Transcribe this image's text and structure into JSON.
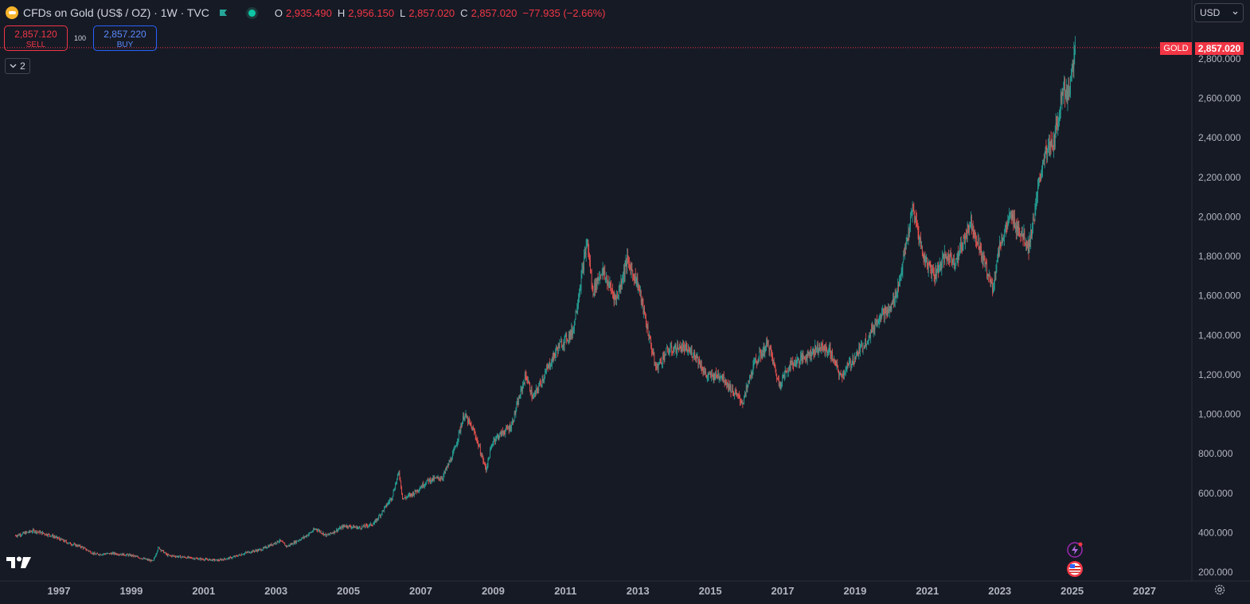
{
  "header": {
    "title": "CFDs on Gold (US$ / OZ) · 1W · TVC",
    "open_key": "O",
    "open": "2,935.490",
    "high_key": "H",
    "high": "2,956.150",
    "low_key": "L",
    "low": "2,857.020",
    "close_key": "C",
    "close": "2,857.020",
    "change": "−77.935 (−2.66%)"
  },
  "trade": {
    "sell_price": "2,857.120",
    "sell_label": "SELL",
    "spread": "100",
    "buy_price": "2,857.220",
    "buy_label": "BUY"
  },
  "indicators_count": "2",
  "currency": "USD",
  "price_scale_label": "2,857.020",
  "symbol_label": "GOLD",
  "colors": {
    "up": "#26a69a",
    "down": "#ef5350",
    "background": "#161a25",
    "accent": "#f23645"
  },
  "icons": [
    "gold-symbol-icon",
    "flag-icon",
    "status-dot-icon",
    "chevron-down-icon",
    "tradingview-logo-icon",
    "flash-icon",
    "us-flag-icon",
    "gear-icon"
  ],
  "chart_data": {
    "type": "candlestick",
    "interval": "1W",
    "title": "",
    "xlabel": "",
    "ylabel": "",
    "ylim": [
      175,
      2950
    ],
    "x_ticks": [
      "1997",
      "1999",
      "2001",
      "2003",
      "2005",
      "2007",
      "2009",
      "2011",
      "2013",
      "2015",
      "2017",
      "2019",
      "2021",
      "2023",
      "2025",
      "2027"
    ],
    "y_ticks": [
      "200.000",
      "400.000",
      "600.000",
      "800.000",
      "1,000.000",
      "1,200.000",
      "1,400.000",
      "1,600.000",
      "1,800.000",
      "2,000.000",
      "2,200.000",
      "2,400.000",
      "2,600.000",
      "2,800.000"
    ],
    "last_price": 2857.02,
    "grid": false,
    "series_close": [
      {
        "year": 1995.8,
        "close": 385
      },
      {
        "year": 1996.1,
        "close": 400
      },
      {
        "year": 1996.3,
        "close": 410
      },
      {
        "year": 1996.8,
        "close": 385
      },
      {
        "year": 1997.3,
        "close": 345
      },
      {
        "year": 1997.6,
        "close": 330
      },
      {
        "year": 1998.0,
        "close": 290
      },
      {
        "year": 1998.5,
        "close": 295
      },
      {
        "year": 1999.0,
        "close": 285
      },
      {
        "year": 1999.6,
        "close": 255
      },
      {
        "year": 1999.75,
        "close": 325
      },
      {
        "year": 2000.0,
        "close": 285
      },
      {
        "year": 2000.5,
        "close": 275
      },
      {
        "year": 2001.0,
        "close": 265
      },
      {
        "year": 2001.4,
        "close": 260
      },
      {
        "year": 2001.8,
        "close": 275
      },
      {
        "year": 2002.2,
        "close": 300
      },
      {
        "year": 2002.6,
        "close": 315
      },
      {
        "year": 2003.1,
        "close": 360
      },
      {
        "year": 2003.3,
        "close": 330
      },
      {
        "year": 2003.8,
        "close": 380
      },
      {
        "year": 2004.1,
        "close": 420
      },
      {
        "year": 2004.4,
        "close": 385
      },
      {
        "year": 2004.9,
        "close": 435
      },
      {
        "year": 2005.3,
        "close": 425
      },
      {
        "year": 2005.7,
        "close": 445
      },
      {
        "year": 2005.95,
        "close": 510
      },
      {
        "year": 2006.2,
        "close": 580
      },
      {
        "year": 2006.4,
        "close": 710
      },
      {
        "year": 2006.5,
        "close": 570
      },
      {
        "year": 2006.8,
        "close": 600
      },
      {
        "year": 2007.2,
        "close": 665
      },
      {
        "year": 2007.6,
        "close": 680
      },
      {
        "year": 2007.9,
        "close": 800
      },
      {
        "year": 2008.2,
        "close": 1000
      },
      {
        "year": 2008.5,
        "close": 900
      },
      {
        "year": 2008.8,
        "close": 720
      },
      {
        "year": 2009.0,
        "close": 870
      },
      {
        "year": 2009.5,
        "close": 940
      },
      {
        "year": 2009.9,
        "close": 1200
      },
      {
        "year": 2010.1,
        "close": 1080
      },
      {
        "year": 2010.5,
        "close": 1230
      },
      {
        "year": 2010.8,
        "close": 1340
      },
      {
        "year": 2011.2,
        "close": 1420
      },
      {
        "year": 2011.6,
        "close": 1880
      },
      {
        "year": 2011.75,
        "close": 1620
      },
      {
        "year": 2012.0,
        "close": 1730
      },
      {
        "year": 2012.4,
        "close": 1580
      },
      {
        "year": 2012.7,
        "close": 1780
      },
      {
        "year": 2013.0,
        "close": 1660
      },
      {
        "year": 2013.3,
        "close": 1400
      },
      {
        "year": 2013.5,
        "close": 1230
      },
      {
        "year": 2013.8,
        "close": 1320
      },
      {
        "year": 2014.2,
        "close": 1340
      },
      {
        "year": 2014.6,
        "close": 1300
      },
      {
        "year": 2014.9,
        "close": 1190
      },
      {
        "year": 2015.3,
        "close": 1200
      },
      {
        "year": 2015.6,
        "close": 1120
      },
      {
        "year": 2015.9,
        "close": 1060
      },
      {
        "year": 2016.2,
        "close": 1250
      },
      {
        "year": 2016.6,
        "close": 1360
      },
      {
        "year": 2016.9,
        "close": 1150
      },
      {
        "year": 2017.2,
        "close": 1250
      },
      {
        "year": 2017.6,
        "close": 1290
      },
      {
        "year": 2018.0,
        "close": 1340
      },
      {
        "year": 2018.3,
        "close": 1320
      },
      {
        "year": 2018.6,
        "close": 1190
      },
      {
        "year": 2019.0,
        "close": 1290
      },
      {
        "year": 2019.4,
        "close": 1400
      },
      {
        "year": 2019.7,
        "close": 1510
      },
      {
        "year": 2019.95,
        "close": 1520
      },
      {
        "year": 2020.2,
        "close": 1650
      },
      {
        "year": 2020.6,
        "close": 2040
      },
      {
        "year": 2020.9,
        "close": 1790
      },
      {
        "year": 2021.2,
        "close": 1710
      },
      {
        "year": 2021.5,
        "close": 1800
      },
      {
        "year": 2021.8,
        "close": 1780
      },
      {
        "year": 2022.2,
        "close": 1980
      },
      {
        "year": 2022.5,
        "close": 1810
      },
      {
        "year": 2022.8,
        "close": 1640
      },
      {
        "year": 2023.0,
        "close": 1860
      },
      {
        "year": 2023.3,
        "close": 2000
      },
      {
        "year": 2023.6,
        "close": 1920
      },
      {
        "year": 2023.8,
        "close": 1850
      },
      {
        "year": 2024.0,
        "close": 2060
      },
      {
        "year": 2024.2,
        "close": 2300
      },
      {
        "year": 2024.5,
        "close": 2380
      },
      {
        "year": 2024.75,
        "close": 2660
      },
      {
        "year": 2024.9,
        "close": 2620
      },
      {
        "year": 2025.1,
        "close": 2860
      }
    ]
  }
}
